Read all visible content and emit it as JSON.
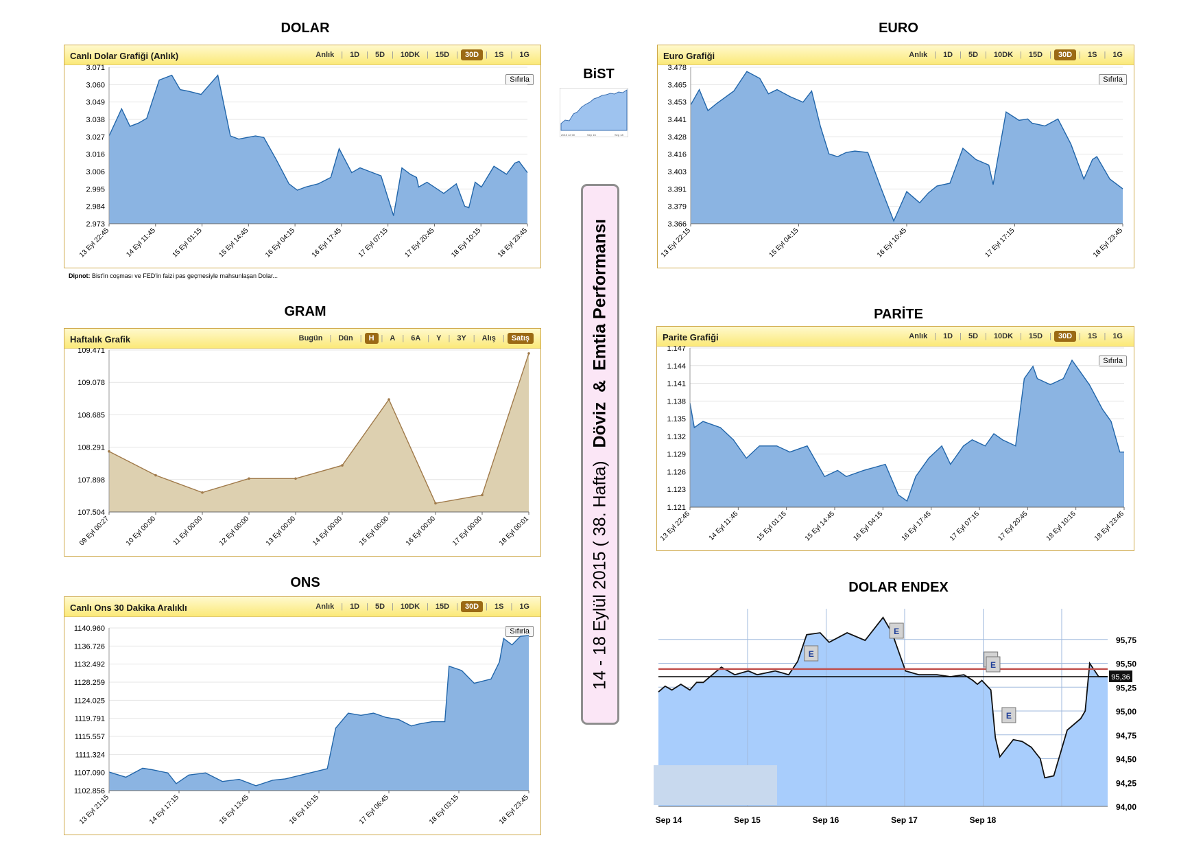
{
  "sections": {
    "dolar": "DOLAR",
    "euro": "EURO",
    "bist": "BiST",
    "gram": "GRAM",
    "parite": "PARİTE",
    "ons": "ONS",
    "endex": "DOLAR ENDEX"
  },
  "tabs_fx": [
    "Anlık",
    "1D",
    "5D",
    "10DK",
    "15D",
    "30D",
    "1S",
    "1G"
  ],
  "tabs_fx_active": "30D",
  "tabs_gram": [
    "Bugün",
    "Dün",
    "H",
    "A",
    "6A",
    "Y",
    "3Y",
    "Alış",
    "Satış"
  ],
  "tabs_gram_active": [
    "H",
    "Satış"
  ],
  "reset_label": "Sıfırla",
  "panels": {
    "dolar": {
      "title": "Canlı Dolar Grafiği (Anlık)"
    },
    "euro": {
      "title": "Euro Grafiği"
    },
    "gram": {
      "title": "Haftalık Grafik"
    },
    "parite": {
      "title": "Parite Grafiği"
    },
    "ons": {
      "title": "Canlı Ons 30 Dakika Aralıklı"
    }
  },
  "footnote": {
    "label": "Dipnot:",
    "text": " Bist'in coşması ve FED'in faizi pas geçmesiyle mahsunlaşan Dolar..."
  },
  "vertical": {
    "date": "14 - 18 Eylül 2015 ( 38. Hafta)",
    "title": "Döviz  &  Emtia Performansı"
  },
  "bist_thumb_labels": [
    "2015 12 00",
    "Sep 16",
    "Sep 18"
  ],
  "colors": {
    "area_blue": "#8bb4e2",
    "line_blue": "#2266aa",
    "gram_fill": "#ddd0b0",
    "gram_line": "#a07a4a",
    "endex_fill": "#a8cdfc",
    "endex_grid": "#9fb9dd",
    "red_line": "#c0504d",
    "panel_border": "#cfa94b",
    "box_bg": "#fbe6f6"
  },
  "chart_data": [
    {
      "id": "dolar",
      "type": "area",
      "title": "Canlı Dolar Grafiği (Anlık)",
      "ylim": [
        2.973,
        3.071
      ],
      "y_ticks": [
        "3.071",
        "3.060",
        "3.049",
        "3.038",
        "3.027",
        "3.016",
        "3.006",
        "2.995",
        "2.984",
        "2.973"
      ],
      "x_ticks": [
        "13 Eyl 22:45",
        "14 Eyl 11:45",
        "15 Eyl 01:15",
        "15 Eyl 14:45",
        "16 Eyl 04:15",
        "16 Eyl 17:45",
        "17 Eyl 07:15",
        "17 Eyl 20:45",
        "18 Eyl 10:15",
        "18 Eyl 23:45"
      ],
      "x": [
        0,
        0.03,
        0.05,
        0.07,
        0.09,
        0.12,
        0.15,
        0.17,
        0.19,
        0.22,
        0.26,
        0.29,
        0.31,
        0.33,
        0.35,
        0.37,
        0.4,
        0.43,
        0.45,
        0.47,
        0.5,
        0.53,
        0.55,
        0.58,
        0.6,
        0.62,
        0.65,
        0.68,
        0.7,
        0.72,
        0.735,
        0.74,
        0.76,
        0.8,
        0.83,
        0.85,
        0.86,
        0.875,
        0.89,
        0.92,
        0.95,
        0.97,
        0.98,
        1
      ],
      "y": [
        3.028,
        3.045,
        3.034,
        3.036,
        3.039,
        3.063,
        3.066,
        3.057,
        3.056,
        3.054,
        3.066,
        3.028,
        3.026,
        3.027,
        3.028,
        3.027,
        3.013,
        2.998,
        2.994,
        2.996,
        2.998,
        3.002,
        3.02,
        3.005,
        3.008,
        3.006,
        3.003,
        2.978,
        3.008,
        3.004,
        3.002,
        2.996,
        2.999,
        2.992,
        2.998,
        2.984,
        2.983,
        2.999,
        2.996,
        3.009,
        3.004,
        3.011,
        3.012,
        3.005
      ],
      "ylabel": "",
      "xlabel": ""
    },
    {
      "id": "euro",
      "type": "area",
      "title": "Euro Grafiği",
      "ylim": [
        3.366,
        3.478
      ],
      "y_ticks": [
        "3.478",
        "3.465",
        "3.453",
        "3.441",
        "3.428",
        "3.416",
        "3.403",
        "3.391",
        "3.379",
        "3.366"
      ],
      "x_ticks": [
        "13 Eyl 22:15",
        "15 Eyl 04:15",
        "16 Eyl 10:45",
        "17 Eyl 17:15",
        "18 Eyl 23:45"
      ],
      "x": [
        0,
        0.02,
        0.04,
        0.06,
        0.1,
        0.13,
        0.16,
        0.18,
        0.2,
        0.23,
        0.26,
        0.28,
        0.3,
        0.32,
        0.34,
        0.36,
        0.38,
        0.41,
        0.44,
        0.47,
        0.5,
        0.53,
        0.55,
        0.57,
        0.6,
        0.63,
        0.66,
        0.69,
        0.7,
        0.73,
        0.76,
        0.78,
        0.79,
        0.82,
        0.85,
        0.88,
        0.91,
        0.93,
        0.94,
        0.97,
        1
      ],
      "y": [
        3.451,
        3.462,
        3.447,
        3.452,
        3.461,
        3.475,
        3.47,
        3.459,
        3.462,
        3.457,
        3.453,
        3.461,
        3.436,
        3.416,
        3.414,
        3.417,
        3.418,
        3.417,
        3.392,
        3.368,
        3.389,
        3.381,
        3.388,
        3.393,
        3.395,
        3.42,
        3.412,
        3.408,
        3.394,
        3.446,
        3.44,
        3.441,
        3.438,
        3.436,
        3.441,
        3.423,
        3.398,
        3.412,
        3.414,
        3.398,
        3.391
      ],
      "ylabel": "",
      "xlabel": ""
    },
    {
      "id": "gram",
      "type": "area",
      "title": "Haftalık Grafik",
      "ylim": [
        107.504,
        109.471
      ],
      "y_ticks": [
        "109.471",
        "109.078",
        "108.685",
        "108.291",
        "107.898",
        "107.504"
      ],
      "x_ticks": [
        "09 Eyl 00:27",
        "10 Eyl 00:00",
        "11 Eyl 00:00",
        "12 Eyl 00:00",
        "13 Eyl 00:00",
        "14 Eyl 00:00",
        "15 Eyl 00:00",
        "16 Eyl 00:00",
        "17 Eyl 00:00",
        "18 Eyl 00:01"
      ],
      "x": [
        0,
        1,
        2,
        3,
        4,
        5,
        6,
        7,
        8,
        9
      ],
      "y": [
        108.24,
        107.95,
        107.74,
        107.91,
        107.91,
        108.07,
        108.87,
        107.61,
        107.71,
        109.43
      ],
      "ylabel": "",
      "xlabel": ""
    },
    {
      "id": "parite",
      "type": "area",
      "title": "Parite Grafiği",
      "ylim": [
        1.121,
        1.147
      ],
      "y_ticks": [
        "1.147",
        "1.144",
        "1.141",
        "1.138",
        "1.135",
        "1.132",
        "1.129",
        "1.126",
        "1.123",
        "1.121"
      ],
      "x_ticks": [
        "13 Eyl 22:45",
        "14 Eyl 11:45",
        "15 Eyl 01:15",
        "15 Eyl 14:45",
        "16 Eyl 04:15",
        "16 Eyl 17:45",
        "17 Eyl 07:15",
        "17 Eyl 20:45",
        "18 Eyl 10:15",
        "18 Eyl 23:45"
      ],
      "x": [
        0,
        0.01,
        0.03,
        0.07,
        0.1,
        0.13,
        0.16,
        0.2,
        0.23,
        0.27,
        0.31,
        0.34,
        0.36,
        0.4,
        0.45,
        0.48,
        0.5,
        0.52,
        0.53,
        0.55,
        0.58,
        0.6,
        0.63,
        0.65,
        0.68,
        0.7,
        0.72,
        0.75,
        0.77,
        0.79,
        0.8,
        0.83,
        0.86,
        0.88,
        0.9,
        0.92,
        0.95,
        0.97,
        0.99,
        1
      ],
      "y": [
        1.138,
        1.134,
        1.135,
        1.134,
        1.132,
        1.129,
        1.131,
        1.131,
        1.13,
        1.131,
        1.126,
        1.127,
        1.126,
        1.127,
        1.128,
        1.123,
        1.122,
        1.126,
        1.127,
        1.129,
        1.131,
        1.128,
        1.131,
        1.132,
        1.131,
        1.133,
        1.132,
        1.131,
        1.142,
        1.144,
        1.142,
        1.141,
        1.142,
        1.145,
        1.143,
        1.141,
        1.137,
        1.135,
        1.13,
        1.13
      ],
      "ylabel": "",
      "xlabel": ""
    },
    {
      "id": "ons",
      "type": "area",
      "title": "Canlı Ons 30 Dakika Aralıklı",
      "ylim": [
        1102.856,
        1140.96
      ],
      "y_ticks": [
        "1140.960",
        "1136.726",
        "1132.492",
        "1128.259",
        "1124.025",
        "1119.791",
        "1115.557",
        "1111.324",
        "1107.090",
        "1102.856"
      ],
      "x_ticks": [
        "13 Eyl 21:15",
        "14 Eyl 17:15",
        "15 Eyl 13:45",
        "16 Eyl 10:15",
        "17 Eyl 06:45",
        "18 Eyl 03:15",
        "18 Eyl 23:45"
      ],
      "x": [
        0,
        0.04,
        0.08,
        0.1,
        0.14,
        0.16,
        0.19,
        0.23,
        0.27,
        0.31,
        0.35,
        0.39,
        0.42,
        0.52,
        0.54,
        0.57,
        0.6,
        0.63,
        0.66,
        0.69,
        0.72,
        0.74,
        0.77,
        0.8,
        0.81,
        0.84,
        0.87,
        0.91,
        0.93,
        0.94,
        0.96,
        0.98,
        1
      ],
      "y": [
        1107.2,
        1106.0,
        1108.1,
        1107.8,
        1107.0,
        1104.5,
        1106.5,
        1107.0,
        1105.0,
        1105.5,
        1104.0,
        1105.3,
        1105.6,
        1108.0,
        1117.5,
        1121.0,
        1120.5,
        1121.0,
        1120.0,
        1119.5,
        1118.0,
        1118.5,
        1119.0,
        1119.0,
        1132.0,
        1131.0,
        1128.0,
        1129.0,
        1133.0,
        1138.5,
        1137.0,
        1139.0,
        1139.2
      ],
      "ylabel": "",
      "xlabel": ""
    },
    {
      "id": "endex",
      "type": "area",
      "title": "",
      "ylim": [
        94.0,
        96.0
      ],
      "y_ticks": [
        "95,75",
        "95,50",
        "95,25",
        "95,00",
        "94,75",
        "94,50",
        "94,25",
        "94,00"
      ],
      "x_ticks": [
        "Sep 14",
        "Sep 15",
        "Sep 16",
        "Sep 17",
        "Sep 18"
      ],
      "x": [
        0,
        0.015,
        0.03,
        0.05,
        0.07,
        0.085,
        0.1,
        0.12,
        0.14,
        0.17,
        0.2,
        0.22,
        0.26,
        0.29,
        0.31,
        0.33,
        0.36,
        0.38,
        0.42,
        0.46,
        0.5,
        0.52,
        0.55,
        0.58,
        0.62,
        0.65,
        0.68,
        0.7,
        0.71,
        0.72,
        0.74,
        0.75,
        0.76,
        0.79,
        0.81,
        0.83,
        0.85,
        0.86,
        0.88,
        0.91,
        0.94,
        0.95,
        0.96,
        0.98,
        1
      ],
      "y": [
        95.2,
        95.26,
        95.22,
        95.28,
        95.22,
        95.3,
        95.3,
        95.38,
        95.46,
        95.38,
        95.42,
        95.38,
        95.42,
        95.38,
        95.52,
        95.8,
        95.82,
        95.72,
        95.82,
        95.74,
        95.98,
        95.82,
        95.42,
        95.38,
        95.38,
        95.36,
        95.38,
        95.32,
        95.28,
        95.32,
        95.22,
        94.72,
        94.52,
        94.7,
        94.68,
        94.62,
        94.5,
        94.3,
        94.32,
        94.8,
        94.92,
        95.0,
        95.5,
        95.36,
        95.36
      ],
      "ref_lines": [
        {
          "value": 95.36,
          "label": "95,36"
        },
        {
          "value": 95.44,
          "label": ""
        }
      ],
      "event_markers": [
        {
          "label": "E",
          "x": 0.34
        },
        {
          "label": "E",
          "x": 0.53
        },
        {
          "label": "E",
          "x": 0.74
        },
        {
          "label": "E",
          "x": 0.745
        },
        {
          "label": "E",
          "x": 0.78
        }
      ],
      "ylabel": "",
      "xlabel": ""
    }
  ]
}
